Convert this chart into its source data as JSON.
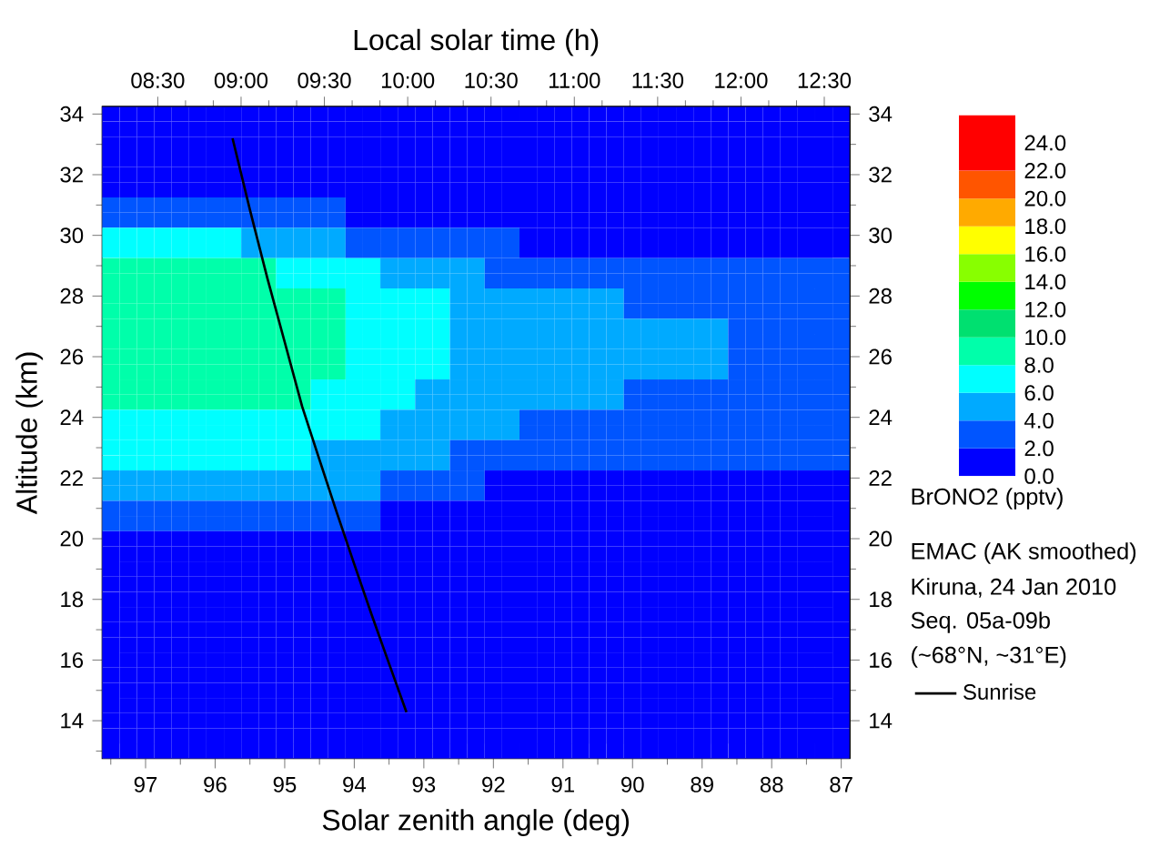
{
  "chart_data": {
    "type": "heatmap",
    "categories": [
      null,
      null,
      "97",
      null,
      null,
      null,
      "96",
      null,
      null,
      null,
      "95",
      null,
      null,
      null,
      "94",
      null,
      null,
      null,
      "93",
      null,
      null,
      null,
      "92",
      null,
      null,
      null,
      "91",
      null,
      null,
      null,
      "90",
      null,
      null,
      null,
      "89",
      null,
      null,
      null,
      "88",
      null,
      null,
      null,
      "87"
    ],
    "y_categories": [
      "34",
      null,
      null,
      null,
      "32",
      null,
      null,
      null,
      "30",
      null,
      null,
      null,
      "28",
      null,
      null,
      null,
      "26",
      null,
      null,
      null,
      "24",
      null,
      null,
      null,
      "22",
      null,
      null,
      null,
      "20",
      null,
      null,
      null,
      "18",
      null,
      null,
      null,
      "16",
      null,
      null,
      null,
      "14",
      null,
      null
    ],
    "xlabel": "Solar zenith angle (deg)",
    "ylabel": "Altitude (km)",
    "x2label": "Local solar time (h)",
    "clabel": "BrONO2 (pptv)",
    "y2lim": [
      12.75,
      34.25
    ],
    "y2ticks": [
      14,
      16,
      18,
      20,
      22,
      24,
      26,
      28,
      30,
      32,
      34
    ],
    "x2lim": [
      8.166,
      12.654
    ],
    "x2ticks": [
      {
        "value": 8.5,
        "label": "08:30"
      },
      {
        "value": 9,
        "label": "09:00"
      },
      {
        "value": 9.5,
        "label": "09:30"
      },
      {
        "value": 10,
        "label": "10:00"
      },
      {
        "value": 10.5,
        "label": "10:30"
      },
      {
        "value": 11,
        "label": "11:00"
      },
      {
        "value": 11.5,
        "label": "11:30"
      },
      {
        "value": 12,
        "label": "12:00"
      },
      {
        "value": 12.5,
        "label": "12:30"
      }
    ],
    "clim": [
      0,
      26
    ],
    "cticks": [
      {
        "value": 0,
        "label": "0.0"
      },
      {
        "value": 2,
        "label": "2.0"
      },
      {
        "value": 4,
        "label": "4.0"
      },
      {
        "value": 6,
        "label": "6.0"
      },
      {
        "value": 8,
        "label": "8.0"
      },
      {
        "value": 10,
        "label": "10.0"
      },
      {
        "value": 12,
        "label": "12.0"
      },
      {
        "value": 14,
        "label": "14.0"
      },
      {
        "value": 16,
        "label": "16.0"
      },
      {
        "value": 18,
        "label": "18.0"
      },
      {
        "value": 20,
        "label": "20.0"
      },
      {
        "value": 22,
        "label": "22.0"
      },
      {
        "value": 24,
        "label": "24.0"
      }
    ],
    "colors": [
      "#0000ff",
      "#0055ff",
      "#00aaff",
      "#00ffff",
      "#00ffaa",
      "#00e070",
      "#00ff00",
      "#88ff00",
      "#ffff00",
      "#ffaa00",
      "#ff5500",
      "#ff0000",
      "#ff0000"
    ],
    "cells": [
      [
        0,
        0,
        0,
        0,
        0,
        0,
        0,
        0,
        0,
        0,
        0,
        0,
        0,
        0,
        0,
        0,
        0,
        0,
        0,
        0,
        0,
        0,
        0,
        0,
        0,
        0,
        0,
        0,
        0,
        0,
        0,
        0,
        0,
        0,
        0,
        0,
        0,
        0,
        0,
        0,
        0,
        0,
        0
      ],
      [
        0,
        0,
        0,
        0,
        0,
        0,
        0,
        0,
        0,
        0,
        0,
        0,
        0,
        0,
        0,
        0,
        0,
        0,
        0,
        0,
        0,
        0,
        0,
        0,
        0,
        0,
        0,
        0,
        0,
        0,
        0,
        0,
        0,
        0,
        0,
        0,
        0,
        0,
        0,
        0,
        0,
        0,
        0
      ],
      [
        0,
        0,
        0,
        0,
        0,
        0,
        0,
        0,
        0,
        0,
        0,
        0,
        0,
        0,
        0,
        0,
        0,
        0,
        0,
        0,
        0,
        0,
        0,
        0,
        0,
        0,
        0,
        0,
        0,
        0,
        0,
        0,
        0,
        0,
        0,
        0,
        0,
        0,
        0,
        0,
        0,
        0,
        0
      ],
      [
        0,
        0,
        0,
        0,
        0,
        0,
        0,
        0,
        0,
        0,
        0,
        0,
        0,
        0,
        0,
        0,
        0,
        0,
        0,
        0,
        0,
        0,
        0,
        0,
        0,
        0,
        0,
        0,
        0,
        0,
        0,
        0,
        0,
        0,
        0,
        0,
        0,
        0,
        0,
        0,
        0,
        0,
        0
      ],
      [
        0,
        0,
        0,
        0,
        0,
        0,
        0,
        0,
        0,
        0,
        0,
        0,
        0,
        0,
        0,
        0,
        0,
        0,
        0,
        0,
        0,
        0,
        0,
        0,
        0,
        0,
        0,
        0,
        0,
        0,
        0,
        0,
        0,
        0,
        0,
        0,
        0,
        0,
        0,
        0,
        0,
        0,
        0
      ],
      [
        0,
        0,
        0,
        0,
        0,
        0,
        0,
        0,
        0,
        0,
        0,
        0,
        0,
        0,
        0,
        0,
        0,
        0,
        0,
        0,
        0,
        0,
        0,
        0,
        0,
        0,
        0,
        0,
        0,
        0,
        0,
        0,
        0,
        0,
        0,
        0,
        0,
        0,
        0,
        0,
        0,
        0,
        0
      ],
      [
        2,
        2,
        2,
        2,
        2,
        2,
        2,
        2,
        2,
        2,
        2,
        2,
        2,
        2,
        0,
        0,
        0,
        0,
        0,
        0,
        0,
        0,
        0,
        0,
        0,
        0,
        0,
        0,
        0,
        0,
        0,
        0,
        0,
        0,
        0,
        0,
        0,
        0,
        0,
        0,
        0,
        0,
        0
      ],
      [
        2,
        2,
        2,
        2,
        2,
        2,
        2,
        2,
        2,
        2,
        2,
        2,
        2,
        2,
        0,
        0,
        0,
        0,
        0,
        0,
        0,
        0,
        0,
        0,
        0,
        0,
        0,
        0,
        0,
        0,
        0,
        0,
        0,
        0,
        0,
        0,
        0,
        0,
        0,
        0,
        0,
        0,
        0
      ],
      [
        6,
        6,
        6,
        6,
        6,
        6,
        6,
        6,
        4,
        4,
        4,
        4,
        4,
        4,
        2,
        2,
        2,
        2,
        2,
        2,
        2,
        2,
        2,
        2,
        0,
        0,
        0,
        0,
        0,
        0,
        0,
        0,
        0,
        0,
        0,
        0,
        0,
        0,
        0,
        0,
        0,
        0,
        0
      ],
      [
        6,
        6,
        6,
        6,
        6,
        6,
        6,
        6,
        4,
        4,
        4,
        4,
        4,
        4,
        2,
        2,
        2,
        2,
        2,
        2,
        2,
        2,
        2,
        2,
        0,
        0,
        0,
        0,
        0,
        0,
        0,
        0,
        0,
        0,
        0,
        0,
        0,
        0,
        0,
        0,
        0,
        0,
        0
      ],
      [
        8,
        8,
        8,
        8,
        8,
        8,
        8,
        8,
        8,
        8,
        6,
        6,
        6,
        6,
        6,
        6,
        4,
        4,
        4,
        4,
        4,
        4,
        2,
        2,
        2,
        2,
        2,
        2,
        2,
        2,
        2,
        2,
        2,
        2,
        2,
        2,
        2,
        2,
        2,
        2,
        2,
        2,
        2
      ],
      [
        8,
        8,
        8,
        8,
        8,
        8,
        8,
        8,
        8,
        8,
        6,
        6,
        6,
        6,
        6,
        6,
        4,
        4,
        4,
        4,
        4,
        4,
        2,
        2,
        2,
        2,
        2,
        2,
        2,
        2,
        2,
        2,
        2,
        2,
        2,
        2,
        2,
        2,
        2,
        2,
        2,
        2,
        2
      ],
      [
        8,
        8,
        8,
        8,
        8,
        8,
        8,
        8,
        8,
        8,
        8,
        8,
        8,
        8,
        6,
        6,
        6,
        6,
        6,
        6,
        4,
        4,
        4,
        4,
        4,
        4,
        4,
        4,
        4,
        4,
        2,
        2,
        2,
        2,
        2,
        2,
        2,
        2,
        2,
        2,
        2,
        2,
        2
      ],
      [
        8,
        8,
        8,
        8,
        8,
        8,
        8,
        8,
        8,
        8,
        8,
        8,
        8,
        8,
        6,
        6,
        6,
        6,
        6,
        6,
        4,
        4,
        4,
        4,
        4,
        4,
        4,
        4,
        4,
        4,
        2,
        2,
        2,
        2,
        2,
        2,
        2,
        2,
        2,
        2,
        2,
        2,
        2
      ],
      [
        8,
        8,
        8,
        8,
        8,
        8,
        8,
        8,
        8,
        8,
        8,
        8,
        8,
        8,
        6,
        6,
        6,
        6,
        6,
        6,
        4,
        4,
        4,
        4,
        4,
        4,
        4,
        4,
        4,
        4,
        4,
        4,
        4,
        4,
        4,
        4,
        2,
        2,
        2,
        2,
        2,
        2,
        2
      ],
      [
        8,
        8,
        8,
        8,
        8,
        8,
        8,
        8,
        8,
        8,
        8,
        8,
        8,
        8,
        6,
        6,
        6,
        6,
        6,
        6,
        4,
        4,
        4,
        4,
        4,
        4,
        4,
        4,
        4,
        4,
        4,
        4,
        4,
        4,
        4,
        4,
        2,
        2,
        2,
        2,
        2,
        2,
        2
      ],
      [
        8,
        8,
        8,
        8,
        8,
        8,
        8,
        8,
        8,
        8,
        8,
        8,
        8,
        8,
        6,
        6,
        6,
        6,
        6,
        6,
        4,
        4,
        4,
        4,
        4,
        4,
        4,
        4,
        4,
        4,
        4,
        4,
        4,
        4,
        4,
        4,
        2,
        2,
        2,
        2,
        2,
        2,
        2
      ],
      [
        8,
        8,
        8,
        8,
        8,
        8,
        8,
        8,
        8,
        8,
        8,
        8,
        8,
        8,
        6,
        6,
        6,
        6,
        6,
        6,
        4,
        4,
        4,
        4,
        4,
        4,
        4,
        4,
        4,
        4,
        4,
        4,
        4,
        4,
        4,
        4,
        2,
        2,
        2,
        2,
        2,
        2,
        2
      ],
      [
        8,
        8,
        8,
        8,
        8,
        8,
        8,
        8,
        8,
        8,
        8,
        8,
        6,
        6,
        6,
        6,
        6,
        6,
        4,
        4,
        4,
        4,
        4,
        4,
        4,
        4,
        4,
        4,
        4,
        4,
        2,
        2,
        2,
        2,
        2,
        2,
        2,
        2,
        2,
        2,
        2,
        2,
        2
      ],
      [
        8,
        8,
        8,
        8,
        8,
        8,
        8,
        8,
        8,
        8,
        8,
        8,
        6,
        6,
        6,
        6,
        6,
        6,
        4,
        4,
        4,
        4,
        4,
        4,
        4,
        4,
        4,
        4,
        4,
        4,
        2,
        2,
        2,
        2,
        2,
        2,
        2,
        2,
        2,
        2,
        2,
        2,
        2
      ],
      [
        6,
        6,
        6,
        6,
        6,
        6,
        6,
        6,
        6,
        6,
        6,
        6,
        6,
        6,
        6,
        6,
        4,
        4,
        4,
        4,
        4,
        4,
        4,
        4,
        2,
        2,
        2,
        2,
        2,
        2,
        2,
        2,
        2,
        2,
        2,
        2,
        2,
        2,
        2,
        2,
        2,
        2,
        2
      ],
      [
        6,
        6,
        6,
        6,
        6,
        6,
        6,
        6,
        6,
        6,
        6,
        6,
        6,
        6,
        6,
        6,
        4,
        4,
        4,
        4,
        4,
        4,
        4,
        4,
        2,
        2,
        2,
        2,
        2,
        2,
        2,
        2,
        2,
        2,
        2,
        2,
        2,
        2,
        2,
        2,
        2,
        2,
        2
      ],
      [
        6,
        6,
        6,
        6,
        6,
        6,
        6,
        6,
        6,
        6,
        6,
        6,
        4,
        4,
        4,
        4,
        4,
        4,
        4,
        4,
        2,
        2,
        2,
        2,
        2,
        2,
        2,
        2,
        2,
        2,
        2,
        2,
        2,
        2,
        2,
        2,
        2,
        2,
        2,
        2,
        2,
        2,
        2
      ],
      [
        6,
        6,
        6,
        6,
        6,
        6,
        6,
        6,
        6,
        6,
        6,
        6,
        4,
        4,
        4,
        4,
        4,
        4,
        4,
        4,
        2,
        2,
        2,
        2,
        2,
        2,
        2,
        2,
        2,
        2,
        2,
        2,
        2,
        2,
        2,
        2,
        2,
        2,
        2,
        2,
        2,
        2,
        2
      ],
      [
        4,
        4,
        4,
        4,
        4,
        4,
        4,
        4,
        4,
        4,
        4,
        4,
        4,
        4,
        4,
        4,
        2,
        2,
        2,
        2,
        2,
        2,
        0,
        0,
        0,
        0,
        0,
        0,
        0,
        0,
        0,
        0,
        0,
        0,
        0,
        0,
        0,
        0,
        0,
        0,
        0,
        0,
        0
      ],
      [
        4,
        4,
        4,
        4,
        4,
        4,
        4,
        4,
        4,
        4,
        4,
        4,
        4,
        4,
        4,
        4,
        2,
        2,
        2,
        2,
        2,
        2,
        0,
        0,
        0,
        0,
        0,
        0,
        0,
        0,
        0,
        0,
        0,
        0,
        0,
        0,
        0,
        0,
        0,
        0,
        0,
        0,
        0
      ],
      [
        2,
        2,
        2,
        2,
        2,
        2,
        2,
        2,
        2,
        2,
        2,
        2,
        2,
        2,
        2,
        2,
        0,
        0,
        0,
        0,
        0,
        0,
        0,
        0,
        0,
        0,
        0,
        0,
        0,
        0,
        0,
        0,
        0,
        0,
        0,
        0,
        0,
        0,
        0,
        0,
        0,
        0,
        0
      ],
      [
        2,
        2,
        2,
        2,
        2,
        2,
        2,
        2,
        2,
        2,
        2,
        2,
        2,
        2,
        2,
        2,
        0,
        0,
        0,
        0,
        0,
        0,
        0,
        0,
        0,
        0,
        0,
        0,
        0,
        0,
        0,
        0,
        0,
        0,
        0,
        0,
        0,
        0,
        0,
        0,
        0,
        0,
        0
      ],
      [
        0,
        0,
        0,
        0,
        0,
        0,
        0,
        0,
        0,
        0,
        0,
        0,
        0,
        0,
        0,
        0,
        0,
        0,
        0,
        0,
        0,
        0,
        0,
        0,
        0,
        0,
        0,
        0,
        0,
        0,
        0,
        0,
        0,
        0,
        0,
        0,
        0,
        0,
        0,
        0,
        0,
        0,
        0
      ],
      [
        0,
        0,
        0,
        0,
        0,
        0,
        0,
        0,
        0,
        0,
        0,
        0,
        0,
        0,
        0,
        0,
        0,
        0,
        0,
        0,
        0,
        0,
        0,
        0,
        0,
        0,
        0,
        0,
        0,
        0,
        0,
        0,
        0,
        0,
        0,
        0,
        0,
        0,
        0,
        0,
        0,
        0,
        0
      ],
      [
        0,
        0,
        0,
        0,
        0,
        0,
        0,
        0,
        0,
        0,
        0,
        0,
        0,
        0,
        0,
        0,
        0,
        0,
        0,
        0,
        0,
        0,
        0,
        0,
        0,
        0,
        0,
        0,
        0,
        0,
        0,
        0,
        0,
        0,
        0,
        0,
        0,
        0,
        0,
        0,
        0,
        0,
        0
      ],
      [
        0,
        0,
        0,
        0,
        0,
        0,
        0,
        0,
        0,
        0,
        0,
        0,
        0,
        0,
        0,
        0,
        0,
        0,
        0,
        0,
        0,
        0,
        0,
        0,
        0,
        0,
        0,
        0,
        0,
        0,
        0,
        0,
        0,
        0,
        0,
        0,
        0,
        0,
        0,
        0,
        0,
        0,
        0
      ],
      [
        0,
        0,
        0,
        0,
        0,
        0,
        0,
        0,
        0,
        0,
        0,
        0,
        0,
        0,
        0,
        0,
        0,
        0,
        0,
        0,
        0,
        0,
        0,
        0,
        0,
        0,
        0,
        0,
        0,
        0,
        0,
        0,
        0,
        0,
        0,
        0,
        0,
        0,
        0,
        0,
        0,
        0,
        0
      ],
      [
        0,
        0,
        0,
        0,
        0,
        0,
        0,
        0,
        0,
        0,
        0,
        0,
        0,
        0,
        0,
        0,
        0,
        0,
        0,
        0,
        0,
        0,
        0,
        0,
        0,
        0,
        0,
        0,
        0,
        0,
        0,
        0,
        0,
        0,
        0,
        0,
        0,
        0,
        0,
        0,
        0,
        0,
        0
      ],
      [
        0,
        0,
        0,
        0,
        0,
        0,
        0,
        0,
        0,
        0,
        0,
        0,
        0,
        0,
        0,
        0,
        0,
        0,
        0,
        0,
        0,
        0,
        0,
        0,
        0,
        0,
        0,
        0,
        0,
        0,
        0,
        0,
        0,
        0,
        0,
        0,
        0,
        0,
        0,
        0,
        0,
        0,
        0
      ],
      [
        0,
        0,
        0,
        0,
        0,
        0,
        0,
        0,
        0,
        0,
        0,
        0,
        0,
        0,
        0,
        0,
        0,
        0,
        0,
        0,
        0,
        0,
        0,
        0,
        0,
        0,
        0,
        0,
        0,
        0,
        0,
        0,
        0,
        0,
        0,
        0,
        0,
        0,
        0,
        0,
        0,
        0,
        0
      ],
      [
        0,
        0,
        0,
        0,
        0,
        0,
        0,
        0,
        0,
        0,
        0,
        0,
        0,
        0,
        0,
        0,
        0,
        0,
        0,
        0,
        0,
        0,
        0,
        0,
        0,
        0,
        0,
        0,
        0,
        0,
        0,
        0,
        0,
        0,
        0,
        0,
        0,
        0,
        0,
        0,
        0,
        0,
        0
      ],
      [
        0,
        0,
        0,
        0,
        0,
        0,
        0,
        0,
        0,
        0,
        0,
        0,
        0,
        0,
        0,
        0,
        0,
        0,
        0,
        0,
        0,
        0,
        0,
        0,
        0,
        0,
        0,
        0,
        0,
        0,
        0,
        0,
        0,
        0,
        0,
        0,
        0,
        0,
        0,
        0,
        0,
        0,
        0
      ],
      [
        0,
        0,
        0,
        0,
        0,
        0,
        0,
        0,
        0,
        0,
        0,
        0,
        0,
        0,
        0,
        0,
        0,
        0,
        0,
        0,
        0,
        0,
        0,
        0,
        0,
        0,
        0,
        0,
        0,
        0,
        0,
        0,
        0,
        0,
        0,
        0,
        0,
        0,
        0,
        0,
        0,
        0,
        0
      ],
      [
        0,
        0,
        0,
        0,
        0,
        0,
        0,
        0,
        0,
        0,
        0,
        0,
        0,
        0,
        0,
        0,
        0,
        0,
        0,
        0,
        0,
        0,
        0,
        0,
        0,
        0,
        0,
        0,
        0,
        0,
        0,
        0,
        0,
        0,
        0,
        0,
        0,
        0,
        0,
        0,
        0,
        0,
        0
      ],
      [
        0,
        0,
        0,
        0,
        0,
        0,
        0,
        0,
        0,
        0,
        0,
        0,
        0,
        0,
        0,
        0,
        0,
        0,
        0,
        0,
        0,
        0,
        0,
        0,
        0,
        0,
        0,
        0,
        0,
        0,
        0,
        0,
        0,
        0,
        0,
        0,
        0,
        0,
        0,
        0,
        0,
        0,
        0
      ],
      [
        0,
        0,
        0,
        0,
        0,
        0,
        0,
        0,
        0,
        0,
        0,
        0,
        0,
        0,
        0,
        0,
        0,
        0,
        0,
        0,
        0,
        0,
        0,
        0,
        0,
        0,
        0,
        0,
        0,
        0,
        0,
        0,
        0,
        0,
        0,
        0,
        0,
        0,
        0,
        0,
        0,
        0,
        0
      ],
      [
        0,
        0,
        0,
        0,
        0,
        0,
        0,
        0,
        0,
        0,
        0,
        0,
        0,
        0,
        0,
        0,
        0,
        0,
        0,
        0,
        0,
        0,
        0,
        0,
        0,
        0,
        0,
        0,
        0,
        0,
        0,
        0,
        0,
        0,
        0,
        0,
        0,
        0,
        0,
        0,
        0,
        0,
        0
      ]
    ],
    "series": [
      {
        "name": "Sunrise",
        "type": "line",
        "axis": "y2",
        "color": "#000000",
        "values": [
          null,
          null,
          null,
          null,
          null,
          null,
          null,
          33.2,
          30.84,
          28.59,
          26.48,
          24.36,
          22.6,
          20.85,
          19.16,
          17.49,
          15.88,
          14.28,
          null,
          null,
          null,
          null,
          null,
          null,
          null,
          null,
          null,
          null,
          null,
          null,
          null,
          null,
          null,
          null,
          null,
          null,
          null,
          null,
          null,
          null,
          null,
          null,
          null
        ]
      }
    ],
    "legend": "right",
    "annotations": [
      "EMAC (AK smoothed)",
      "Kiruna, 24 Jan 2010",
      "Seq. 05a-09b",
      "(~68°N, ~31°E)"
    ]
  }
}
